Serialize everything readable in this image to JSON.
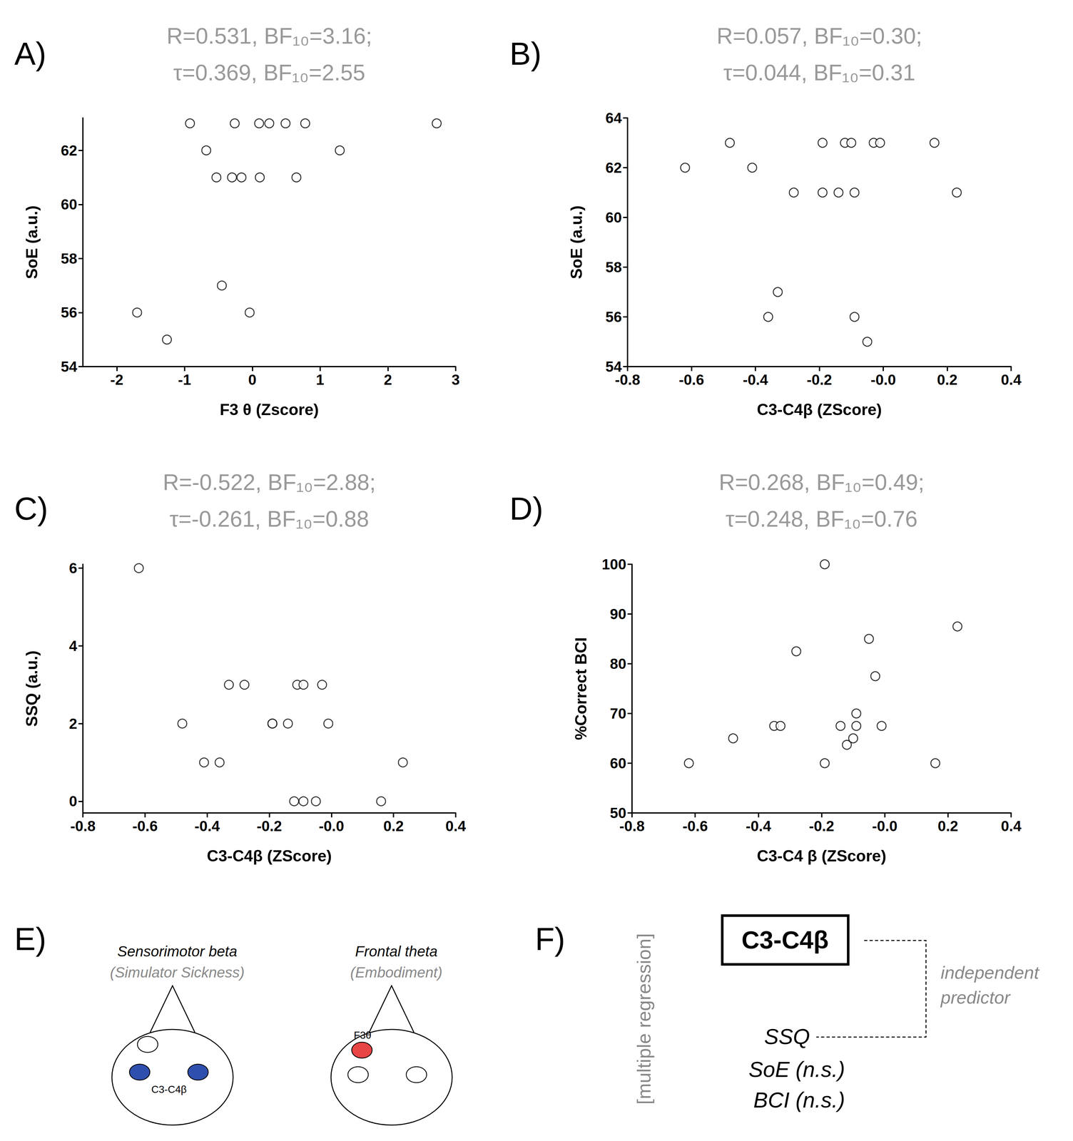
{
  "chart_data": [
    {
      "type": "scatter",
      "panel": "A)",
      "title": [
        "R=0.531, BF₁₀=3.16;",
        "τ=0.369, BF₁₀=2.55"
      ],
      "x_label": "F3 θ (Zscore)",
      "y_label": "SoE (a.u.)",
      "x": [
        -0.92,
        -0.26,
        0.1,
        0.25,
        0.49,
        0.78,
        2.72,
        -0.68,
        1.29,
        -0.53,
        -0.3,
        -0.16,
        0.11,
        0.65,
        -0.45,
        -1.7,
        -0.04,
        -1.26
      ],
      "values": [
        63,
        63,
        63,
        63,
        63,
        63,
        63,
        62,
        62,
        61,
        61,
        61,
        61,
        61,
        57,
        56,
        56,
        55
      ],
      "xlim": [
        -2.5,
        3
      ],
      "xticks": [
        -2,
        -1,
        0,
        1,
        2,
        3
      ],
      "ylim": [
        54,
        63.2
      ],
      "yticks": [
        54,
        56,
        58,
        60,
        62
      ],
      "color": "#000000",
      "marker": "open_circle",
      "grid": false
    },
    {
      "type": "scatter",
      "panel": "B)",
      "title": [
        "R=0.057, BF₁₀=0.30;",
        "τ=0.044, BF₁₀=0.31"
      ],
      "x_label": "C3-C4β (ZScore)",
      "y_label": "SoE (a.u.)",
      "x": [
        -0.62,
        -0.48,
        -0.41,
        -0.36,
        -0.33,
        -0.28,
        -0.19,
        -0.19,
        -0.14,
        -0.12,
        -0.1,
        -0.09,
        -0.09,
        -0.05,
        -0.03,
        -0.01,
        0.16,
        0.23
      ],
      "values": [
        62,
        63,
        62,
        56,
        57,
        61,
        63,
        61,
        61,
        63,
        63,
        61,
        56,
        55,
        63,
        63,
        63,
        61
      ],
      "xlim": [
        -0.8,
        0.4
      ],
      "xticks": [
        -0.8,
        -0.6,
        -0.4,
        -0.2,
        {
          "value": 0,
          "label": "-0.0"
        },
        0.2,
        0.4
      ],
      "ylim": [
        54,
        64
      ],
      "yticks": [
        54,
        56,
        58,
        60,
        62,
        64
      ],
      "color": "#000000",
      "marker": "open_circle",
      "grid": false
    },
    {
      "type": "scatter",
      "panel": "C)",
      "title": [
        "R=-0.522, BF₁₀=2.88;",
        "τ=-0.261, BF₁₀=0.88"
      ],
      "x_label": "C3-C4β (ZScore)",
      "y_label": "SSQ (a.u.)",
      "x": [
        -0.62,
        -0.48,
        -0.41,
        -0.36,
        -0.33,
        -0.28,
        -0.19,
        -0.19,
        -0.14,
        -0.11,
        -0.09,
        -0.03,
        -0.01,
        -0.12,
        -0.09,
        -0.05,
        0.16,
        0.23
      ],
      "values": [
        6,
        2,
        1,
        1,
        3,
        3,
        2,
        2,
        2,
        3,
        3,
        3,
        2,
        0,
        0,
        0,
        0,
        1
      ],
      "xlim": [
        -0.8,
        0.4
      ],
      "xticks": [
        -0.8,
        -0.6,
        -0.4,
        -0.2,
        {
          "value": 0,
          "label": "-0.0"
        },
        0.2,
        0.4
      ],
      "ylim": [
        -0.3,
        6.1
      ],
      "yticks": [
        0,
        2,
        4,
        6
      ],
      "color": "#000000",
      "marker": "open_circle",
      "grid": false
    },
    {
      "type": "scatter",
      "panel": "D)",
      "title": [
        "R=0.268, BF₁₀=0.49;",
        "τ=0.248, BF₁₀=0.76"
      ],
      "x_label": "C3-C4 β (ZScore)",
      "y_label": "%Correct BCI",
      "x": [
        -0.62,
        -0.48,
        -0.35,
        -0.33,
        -0.28,
        -0.19,
        -0.19,
        -0.14,
        -0.12,
        -0.1,
        -0.09,
        -0.09,
        -0.05,
        -0.03,
        -0.01,
        0.16,
        0.23
      ],
      "values": [
        60,
        65,
        67.5,
        67.5,
        82.5,
        100,
        60,
        67.5,
        63.7,
        65,
        70,
        67.5,
        85,
        77.5,
        67.5,
        60,
        87.5
      ],
      "xlim": [
        -0.8,
        0.4
      ],
      "xticks": [
        -0.8,
        -0.6,
        -0.4,
        -0.2,
        {
          "value": 0,
          "label": "-0.0"
        },
        0.2,
        0.4
      ],
      "ylim": [
        50,
        100
      ],
      "yticks": [
        50,
        60,
        70,
        80,
        90,
        100
      ],
      "color": "#000000",
      "marker": "open_circle",
      "grid": false
    }
  ],
  "diagrams": {
    "E": {
      "panel": "E)",
      "heads": [
        {
          "title": "Sensorimotor beta",
          "subtitle": "(Simulator Sickness)",
          "electrode_label": "C3-C4β"
        },
        {
          "title": "Frontal theta",
          "subtitle": "(Embodiment)",
          "electrode_label": "F3θ"
        }
      ]
    },
    "F": {
      "panel": "F)",
      "side_label": "[multiple regression]",
      "box": "C3-C4β",
      "link_label": "independent predictor",
      "predictors": [
        "SSQ",
        "SoE (n.s.)",
        "BCI (n.s.)"
      ]
    }
  }
}
